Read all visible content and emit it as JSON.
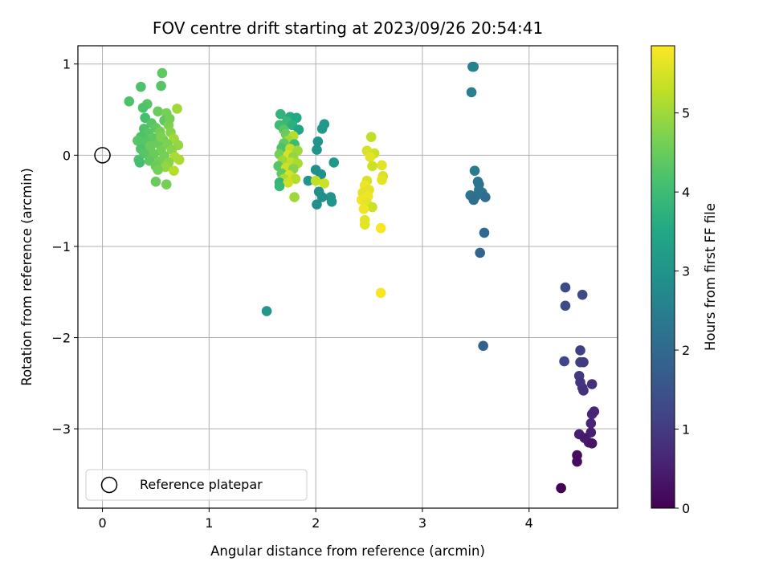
{
  "chart_data": {
    "type": "scatter",
    "title": "FOV centre drift starting at 2023/09/26 20:54:41",
    "xlabel": "Angular distance from reference (arcmin)",
    "ylabel": "Rotation from reference (arcmin)",
    "xlim": [
      -0.23,
      4.83
    ],
    "ylim": [
      -3.87,
      1.2
    ],
    "xticks": [
      0,
      1,
      2,
      3,
      4
    ],
    "yticks": [
      1,
      0,
      -1,
      -2,
      -3
    ],
    "xtick_labels": [
      "0",
      "1",
      "2",
      "3",
      "4"
    ],
    "ytick_labels": [
      "1",
      "0",
      "−1",
      "−2",
      "−3"
    ],
    "grid": true,
    "colormap": "viridis",
    "colorbar": {
      "label": "Hours from first FF file",
      "range": [
        0,
        5.85
      ],
      "ticks": [
        0,
        1,
        2,
        3,
        4,
        5
      ],
      "tick_labels": [
        "0",
        "1",
        "2",
        "3",
        "4",
        "5"
      ]
    },
    "reference_point": {
      "x": 0,
      "y": 0
    },
    "legend": {
      "label": "Reference platepar",
      "position": "lower-left"
    },
    "points": [
      {
        "x": 0.25,
        "y": 0.59,
        "t": 4.2
      },
      {
        "x": 0.36,
        "y": 0.75,
        "t": 4.2
      },
      {
        "x": 0.56,
        "y": 0.9,
        "t": 4.4
      },
      {
        "x": 0.55,
        "y": 0.76,
        "t": 4.3
      },
      {
        "x": 0.42,
        "y": 0.56,
        "t": 4.3
      },
      {
        "x": 0.38,
        "y": 0.52,
        "t": 4.2
      },
      {
        "x": 0.52,
        "y": 0.48,
        "t": 4.5
      },
      {
        "x": 0.6,
        "y": 0.46,
        "t": 4.6
      },
      {
        "x": 0.7,
        "y": 0.51,
        "t": 5.0
      },
      {
        "x": 0.4,
        "y": 0.41,
        "t": 4.1
      },
      {
        "x": 0.58,
        "y": 0.38,
        "t": 4.4
      },
      {
        "x": 0.46,
        "y": 0.35,
        "t": 4.3
      },
      {
        "x": 0.62,
        "y": 0.33,
        "t": 4.7
      },
      {
        "x": 0.39,
        "y": 0.29,
        "t": 4.2
      },
      {
        "x": 0.5,
        "y": 0.3,
        "t": 4.4
      },
      {
        "x": 0.54,
        "y": 0.26,
        "t": 4.6
      },
      {
        "x": 0.43,
        "y": 0.24,
        "t": 4.3
      },
      {
        "x": 0.64,
        "y": 0.25,
        "t": 4.8
      },
      {
        "x": 0.36,
        "y": 0.2,
        "t": 4.2
      },
      {
        "x": 0.47,
        "y": 0.19,
        "t": 4.4
      },
      {
        "x": 0.57,
        "y": 0.17,
        "t": 4.5
      },
      {
        "x": 0.67,
        "y": 0.18,
        "t": 5.0
      },
      {
        "x": 0.33,
        "y": 0.16,
        "t": 4.3
      },
      {
        "x": 0.41,
        "y": 0.14,
        "t": 4.3
      },
      {
        "x": 0.52,
        "y": 0.13,
        "t": 4.5
      },
      {
        "x": 0.61,
        "y": 0.12,
        "t": 4.7
      },
      {
        "x": 0.71,
        "y": 0.11,
        "t": 4.9
      },
      {
        "x": 0.36,
        "y": 0.07,
        "t": 4.2
      },
      {
        "x": 0.45,
        "y": 0.06,
        "t": 4.4
      },
      {
        "x": 0.55,
        "y": 0.05,
        "t": 4.6
      },
      {
        "x": 0.65,
        "y": 0.06,
        "t": 4.8
      },
      {
        "x": 0.39,
        "y": 0.02,
        "t": 4.3
      },
      {
        "x": 0.48,
        "y": 0.01,
        "t": 4.5
      },
      {
        "x": 0.58,
        "y": -0.01,
        "t": 4.6
      },
      {
        "x": 0.68,
        "y": -0.02,
        "t": 5.1
      },
      {
        "x": 0.34,
        "y": -0.05,
        "t": 4.2
      },
      {
        "x": 0.44,
        "y": -0.06,
        "t": 4.4
      },
      {
        "x": 0.53,
        "y": -0.07,
        "t": 4.6
      },
      {
        "x": 0.62,
        "y": -0.08,
        "t": 4.8
      },
      {
        "x": 0.72,
        "y": -0.05,
        "t": 5.1
      },
      {
        "x": 0.5,
        "y": -0.12,
        "t": 4.5
      },
      {
        "x": 0.59,
        "y": -0.13,
        "t": 4.9
      },
      {
        "x": 0.67,
        "y": -0.17,
        "t": 5.2
      },
      {
        "x": 0.52,
        "y": -0.16,
        "t": 4.6
      },
      {
        "x": 0.5,
        "y": -0.29,
        "t": 4.5
      },
      {
        "x": 0.6,
        "y": -0.32,
        "t": 4.6
      },
      {
        "x": 0.35,
        "y": -0.08,
        "t": 4.1
      },
      {
        "x": 0.45,
        "y": 0.1,
        "t": 4.5
      },
      {
        "x": 0.55,
        "y": 0.2,
        "t": 4.7
      },
      {
        "x": 0.63,
        "y": 0.4,
        "t": 4.6
      },
      {
        "x": 1.67,
        "y": 0.45,
        "t": 3.8
      },
      {
        "x": 1.76,
        "y": 0.42,
        "t": 3.6
      },
      {
        "x": 1.82,
        "y": 0.41,
        "t": 3.5
      },
      {
        "x": 1.73,
        "y": 0.37,
        "t": 3.9
      },
      {
        "x": 1.66,
        "y": 0.33,
        "t": 4.0
      },
      {
        "x": 1.78,
        "y": 0.33,
        "t": 3.7
      },
      {
        "x": 2.08,
        "y": 0.34,
        "t": 3.1
      },
      {
        "x": 2.06,
        "y": 0.29,
        "t": 3.1
      },
      {
        "x": 1.7,
        "y": 0.28,
        "t": 4.3
      },
      {
        "x": 1.84,
        "y": 0.28,
        "t": 3.4
      },
      {
        "x": 1.72,
        "y": 0.23,
        "t": 4.5
      },
      {
        "x": 1.79,
        "y": 0.21,
        "t": 5.2
      },
      {
        "x": 1.74,
        "y": 0.16,
        "t": 5.0
      },
      {
        "x": 2.02,
        "y": 0.15,
        "t": 3.0
      },
      {
        "x": 1.7,
        "y": 0.13,
        "t": 4.4
      },
      {
        "x": 1.8,
        "y": 0.12,
        "t": 4.0
      },
      {
        "x": 1.68,
        "y": 0.08,
        "t": 4.2
      },
      {
        "x": 1.76,
        "y": 0.07,
        "t": 5.3
      },
      {
        "x": 1.83,
        "y": 0.05,
        "t": 5.0
      },
      {
        "x": 2.01,
        "y": 0.06,
        "t": 3.0
      },
      {
        "x": 1.66,
        "y": 0.01,
        "t": 4.6
      },
      {
        "x": 1.74,
        "y": 0.0,
        "t": 5.5
      },
      {
        "x": 1.79,
        "y": -0.02,
        "t": 4.9
      },
      {
        "x": 1.69,
        "y": -0.06,
        "t": 5.0
      },
      {
        "x": 1.77,
        "y": -0.08,
        "t": 5.3
      },
      {
        "x": 1.83,
        "y": -0.09,
        "t": 5.1
      },
      {
        "x": 2.17,
        "y": -0.08,
        "t": 3.1
      },
      {
        "x": 1.65,
        "y": -0.12,
        "t": 4.3
      },
      {
        "x": 1.72,
        "y": -0.14,
        "t": 5.4
      },
      {
        "x": 1.79,
        "y": -0.15,
        "t": 4.8
      },
      {
        "x": 2.0,
        "y": -0.16,
        "t": 2.9
      },
      {
        "x": 1.68,
        "y": -0.2,
        "t": 4.4
      },
      {
        "x": 1.75,
        "y": -0.22,
        "t": 5.5
      },
      {
        "x": 2.05,
        "y": -0.21,
        "t": 2.9
      },
      {
        "x": 1.7,
        "y": -0.26,
        "t": 5.1
      },
      {
        "x": 1.81,
        "y": -0.26,
        "t": 5.2
      },
      {
        "x": 1.93,
        "y": -0.28,
        "t": 3.0
      },
      {
        "x": 2.0,
        "y": -0.28,
        "t": 5.3
      },
      {
        "x": 1.66,
        "y": -0.3,
        "t": 3.8
      },
      {
        "x": 1.74,
        "y": -0.3,
        "t": 5.4
      },
      {
        "x": 2.08,
        "y": -0.31,
        "t": 5.4
      },
      {
        "x": 1.66,
        "y": -0.34,
        "t": 3.9
      },
      {
        "x": 2.03,
        "y": -0.4,
        "t": 2.9
      },
      {
        "x": 2.14,
        "y": -0.46,
        "t": 3.0
      },
      {
        "x": 1.8,
        "y": -0.46,
        "t": 5.0
      },
      {
        "x": 2.06,
        "y": -0.46,
        "t": 2.9
      },
      {
        "x": 2.15,
        "y": -0.51,
        "t": 3.0
      },
      {
        "x": 2.01,
        "y": -0.54,
        "t": 2.9
      },
      {
        "x": 1.54,
        "y": -1.71,
        "t": 3.1
      },
      {
        "x": 2.52,
        "y": 0.2,
        "t": 5.3
      },
      {
        "x": 2.48,
        "y": 0.05,
        "t": 5.5
      },
      {
        "x": 2.55,
        "y": 0.02,
        "t": 5.4
      },
      {
        "x": 2.51,
        "y": -0.02,
        "t": 5.6
      },
      {
        "x": 2.62,
        "y": -0.11,
        "t": 5.6
      },
      {
        "x": 2.53,
        "y": -0.12,
        "t": 5.4
      },
      {
        "x": 2.63,
        "y": -0.23,
        "t": 5.5
      },
      {
        "x": 2.62,
        "y": -0.27,
        "t": 5.6
      },
      {
        "x": 2.48,
        "y": -0.28,
        "t": 5.5
      },
      {
        "x": 2.46,
        "y": -0.33,
        "t": 5.7
      },
      {
        "x": 2.5,
        "y": -0.38,
        "t": 5.6
      },
      {
        "x": 2.44,
        "y": -0.41,
        "t": 5.6
      },
      {
        "x": 2.49,
        "y": -0.45,
        "t": 5.7
      },
      {
        "x": 2.43,
        "y": -0.49,
        "t": 5.7
      },
      {
        "x": 2.48,
        "y": -0.53,
        "t": 5.6
      },
      {
        "x": 2.53,
        "y": -0.57,
        "t": 5.4
      },
      {
        "x": 2.45,
        "y": -0.59,
        "t": 5.7
      },
      {
        "x": 2.46,
        "y": -0.71,
        "t": 5.6
      },
      {
        "x": 2.46,
        "y": -0.76,
        "t": 5.6
      },
      {
        "x": 2.61,
        "y": -0.8,
        "t": 5.8
      },
      {
        "x": 2.61,
        "y": -1.51,
        "t": 5.8
      },
      {
        "x": 3.47,
        "y": 0.97,
        "t": 2.6
      },
      {
        "x": 3.48,
        "y": 0.97,
        "t": 2.6
      },
      {
        "x": 3.46,
        "y": 0.69,
        "t": 2.5
      },
      {
        "x": 3.49,
        "y": -0.17,
        "t": 2.4
      },
      {
        "x": 3.52,
        "y": -0.29,
        "t": 2.3
      },
      {
        "x": 3.53,
        "y": -0.32,
        "t": 2.2
      },
      {
        "x": 3.53,
        "y": -0.38,
        "t": 2.3
      },
      {
        "x": 3.45,
        "y": -0.44,
        "t": 2.3
      },
      {
        "x": 3.5,
        "y": -0.45,
        "t": 2.2
      },
      {
        "x": 3.56,
        "y": -0.41,
        "t": 2.2
      },
      {
        "x": 3.59,
        "y": -0.46,
        "t": 2.1
      },
      {
        "x": 3.48,
        "y": -0.49,
        "t": 2.1
      },
      {
        "x": 3.58,
        "y": -0.85,
        "t": 2.0
      },
      {
        "x": 3.54,
        "y": -1.07,
        "t": 1.9
      },
      {
        "x": 3.57,
        "y": -2.09,
        "t": 1.8
      },
      {
        "x": 4.34,
        "y": -1.45,
        "t": 1.3
      },
      {
        "x": 4.34,
        "y": -1.65,
        "t": 1.3
      },
      {
        "x": 4.5,
        "y": -1.53,
        "t": 1.3
      },
      {
        "x": 4.48,
        "y": -2.14,
        "t": 1.1
      },
      {
        "x": 4.33,
        "y": -2.26,
        "t": 1.2
      },
      {
        "x": 4.48,
        "y": -2.27,
        "t": 1.1
      },
      {
        "x": 4.51,
        "y": -2.27,
        "t": 1.0
      },
      {
        "x": 4.47,
        "y": -2.42,
        "t": 1.0
      },
      {
        "x": 4.48,
        "y": -2.49,
        "t": 0.9
      },
      {
        "x": 4.5,
        "y": -2.55,
        "t": 0.9
      },
      {
        "x": 4.51,
        "y": -2.58,
        "t": 0.8
      },
      {
        "x": 4.59,
        "y": -2.51,
        "t": 0.8
      },
      {
        "x": 4.59,
        "y": -2.84,
        "t": 0.7
      },
      {
        "x": 4.61,
        "y": -2.81,
        "t": 0.6
      },
      {
        "x": 4.58,
        "y": -2.94,
        "t": 0.6
      },
      {
        "x": 4.58,
        "y": -3.04,
        "t": 0.5
      },
      {
        "x": 4.47,
        "y": -3.06,
        "t": 0.5
      },
      {
        "x": 4.52,
        "y": -3.1,
        "t": 0.4
      },
      {
        "x": 4.56,
        "y": -3.15,
        "t": 0.4
      },
      {
        "x": 4.59,
        "y": -3.16,
        "t": 0.3
      },
      {
        "x": 4.45,
        "y": -3.29,
        "t": 0.2
      },
      {
        "x": 4.45,
        "y": -3.36,
        "t": 0.2
      },
      {
        "x": 4.3,
        "y": -3.65,
        "t": 0.0
      }
    ]
  }
}
